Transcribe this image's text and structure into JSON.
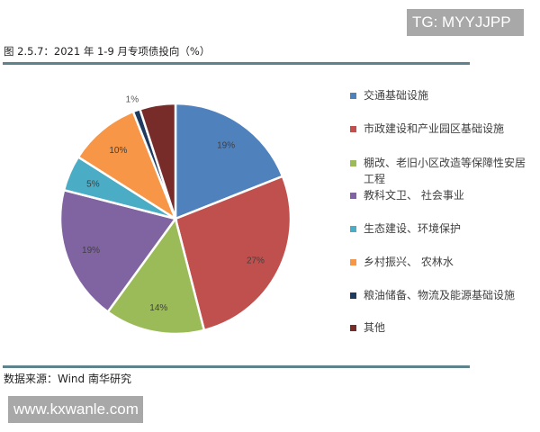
{
  "watermark_top": "TG: MYYJJPP",
  "title": "图 2.5.7：2021 年 1-9 月专项债投向（%）",
  "source": "数据来源：Wind 南华研究",
  "watermark_bottom": "www.kxwanle.com",
  "legend": [
    {
      "label": "交通基础设施",
      "color": "#4f81bd"
    },
    {
      "label": "市政建设和产业园区基础设施",
      "color": "#c0504d"
    },
    {
      "label": "棚改、老旧小区改造等保障性安居工程",
      "color": "#9bbb59"
    },
    {
      "label": "教科文卫、 社会事业",
      "color": "#8064a2"
    },
    {
      "label": "生态建设、环境保护",
      "color": "#4bacc6"
    },
    {
      "label": "乡村振兴、  农林水",
      "color": "#f79646"
    },
    {
      "label": "粮油储备、物流及能源基础设施",
      "color": "#1f3a5f"
    },
    {
      "label": "其他",
      "color": "#772c2a"
    }
  ],
  "chart_data": {
    "type": "pie",
    "title": "2021 年 1-9 月专项债投向（%）",
    "categories": [
      "交通基础设施",
      "市政建设和产业园区基础设施",
      "棚改、老旧小区改造等保障性安居工程",
      "教科文卫、 社会事业",
      "生态建设、环境保护",
      "乡村振兴、  农林水",
      "粮油储备、物流及能源基础设施",
      "其他"
    ],
    "values": [
      19,
      27,
      14,
      19,
      5,
      10,
      1,
      5
    ],
    "labels": [
      "19%",
      "27%",
      "14%",
      "19%",
      "5%",
      "10%",
      "1%",
      ""
    ],
    "colors": [
      "#4f81bd",
      "#c0504d",
      "#9bbb59",
      "#8064a2",
      "#4bacc6",
      "#f79646",
      "#1f3a5f",
      "#772c2a"
    ],
    "start_angle_deg": 0,
    "direction": "clockwise",
    "legend_position": "right"
  }
}
